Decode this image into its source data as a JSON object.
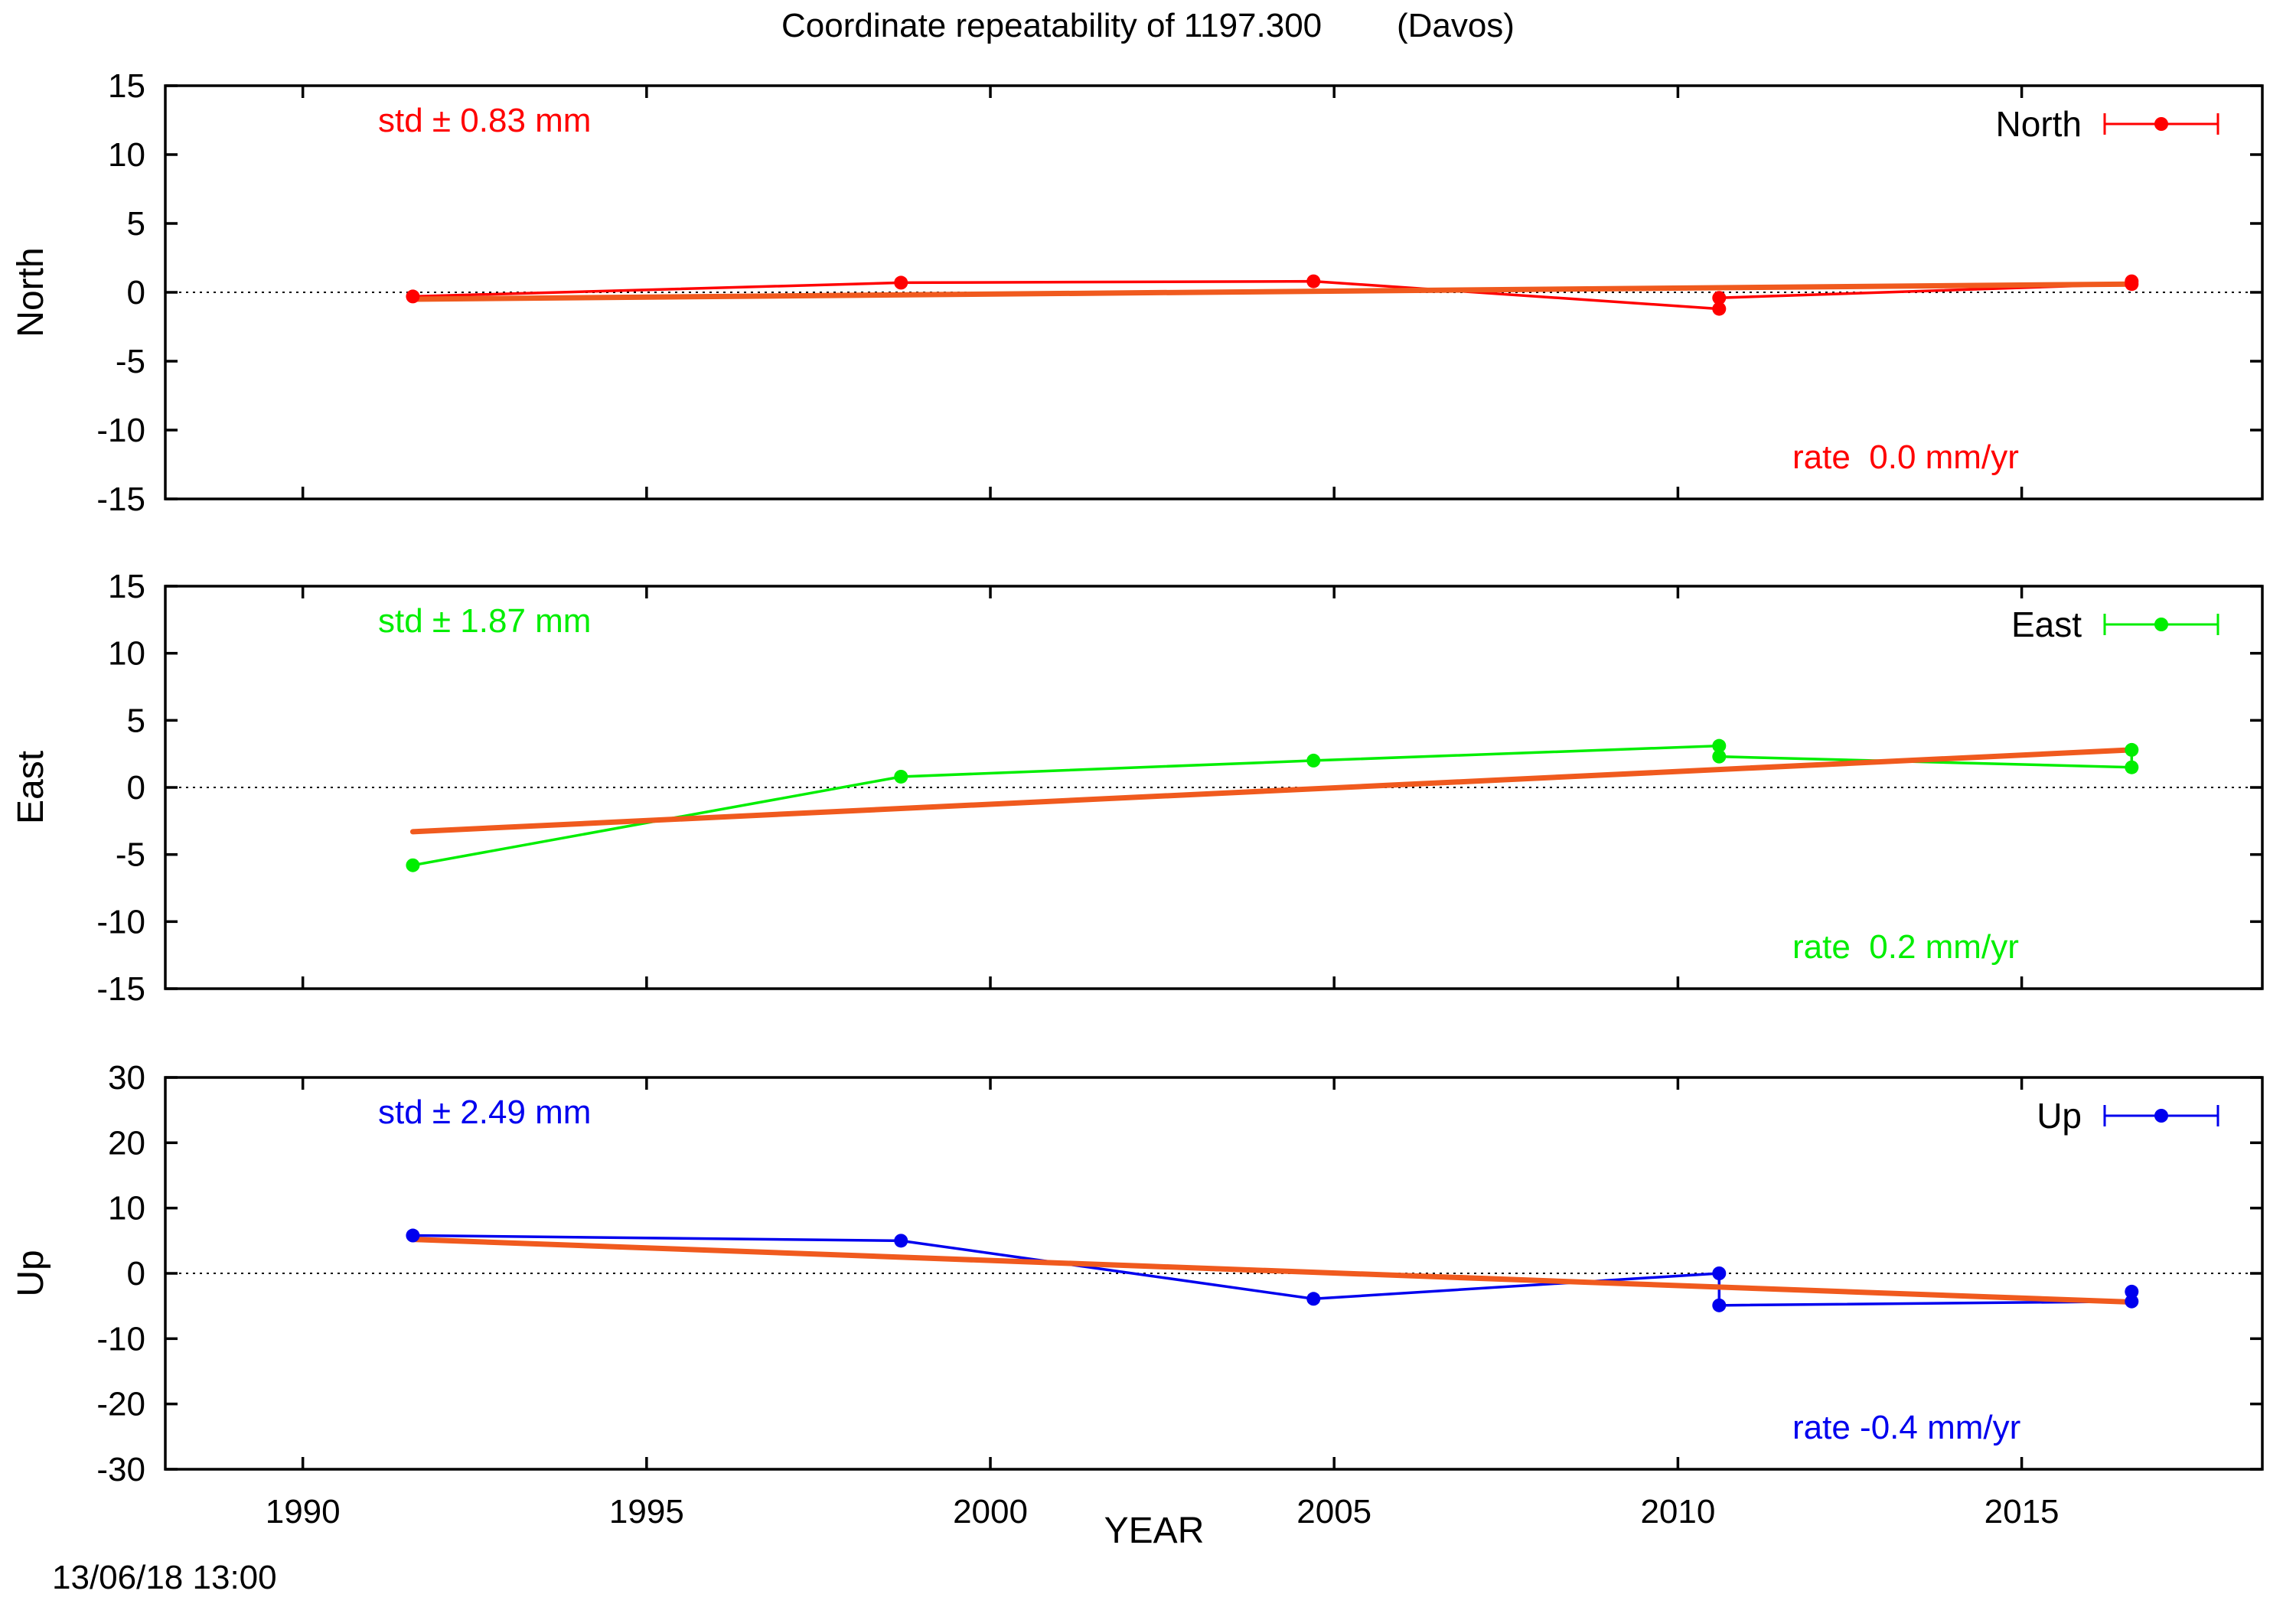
{
  "title": "Coordinate repeatability of 1197.300        (Davos)",
  "timestamp": "13/06/18 13:00",
  "trend_color": "#f05a1e",
  "chart_data": [
    {
      "type": "line",
      "name": "North",
      "ylabel": "North",
      "color": "#ff0000",
      "ylim": [
        -15,
        15
      ],
      "yticks": [
        -15,
        -10,
        -5,
        0,
        5,
        10,
        15
      ],
      "xlim": [
        1988,
        2018.5
      ],
      "std_label": "std ± 0.83 mm",
      "rate_label": "rate  0.0 mm/yr",
      "legend": "North",
      "x": [
        1991.6,
        1998.7,
        2004.7,
        2010.6,
        2010.6,
        2016.6,
        2016.6
      ],
      "values": [
        -0.3,
        0.7,
        0.8,
        -1.2,
        -0.4,
        0.6,
        0.8
      ],
      "trend": {
        "x": [
          1991.6,
          2016.6
        ],
        "y": [
          -0.5,
          0.6
        ]
      }
    },
    {
      "type": "line",
      "name": "East",
      "ylabel": "East",
      "color": "#00ee00",
      "ylim": [
        -15,
        15
      ],
      "yticks": [
        -15,
        -10,
        -5,
        0,
        5,
        10,
        15
      ],
      "xlim": [
        1988,
        2018.5
      ],
      "std_label": "std ± 1.87 mm",
      "rate_label": "rate  0.2 mm/yr",
      "legend": "East",
      "x": [
        1991.6,
        1998.7,
        2004.7,
        2010.6,
        2010.6,
        2016.6,
        2016.6
      ],
      "values": [
        -5.8,
        0.8,
        2.0,
        3.1,
        2.3,
        1.5,
        2.8
      ],
      "trend": {
        "x": [
          1991.6,
          2016.6
        ],
        "y": [
          -3.3,
          2.8
        ]
      }
    },
    {
      "type": "line",
      "name": "Up",
      "ylabel": "Up",
      "color": "#0000ee",
      "ylim": [
        -30,
        30
      ],
      "yticks": [
        -30,
        -20,
        -10,
        0,
        10,
        20,
        30
      ],
      "xlim": [
        1988,
        2018.5
      ],
      "std_label": "std ± 2.49 mm",
      "rate_label": "rate -0.4 mm/yr",
      "legend": "Up",
      "x": [
        1991.6,
        1998.7,
        2004.7,
        2010.6,
        2010.6,
        2016.6,
        2016.6
      ],
      "values": [
        5.8,
        5.0,
        -3.9,
        0.0,
        -4.9,
        -4.3,
        -2.8
      ],
      "trend": {
        "x": [
          1991.6,
          2016.6
        ],
        "y": [
          5.2,
          -4.4
        ]
      }
    }
  ],
  "xaxis": {
    "label": "YEAR",
    "ticks": [
      1990,
      1995,
      2000,
      2005,
      2010,
      2015
    ]
  }
}
